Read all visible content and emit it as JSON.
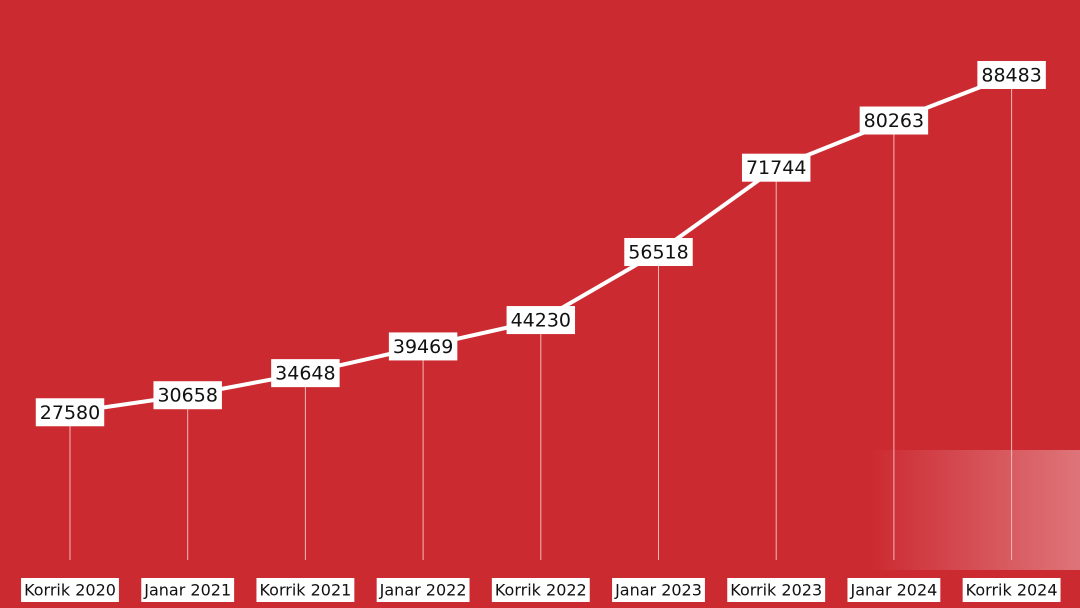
{
  "chart_data": {
    "type": "line",
    "color": "#ffffff",
    "categories": [
      "Korrik 2020",
      "Janar 2021",
      "Korrik 2021",
      "Janar 2022",
      "Korrik 2022",
      "Janar 2023",
      "Korrik 2023",
      "Janar 2024",
      "Korrik 2024"
    ],
    "values": [
      27580,
      30658,
      34648,
      39469,
      44230,
      56518,
      71744,
      80263,
      88483
    ]
  }
}
